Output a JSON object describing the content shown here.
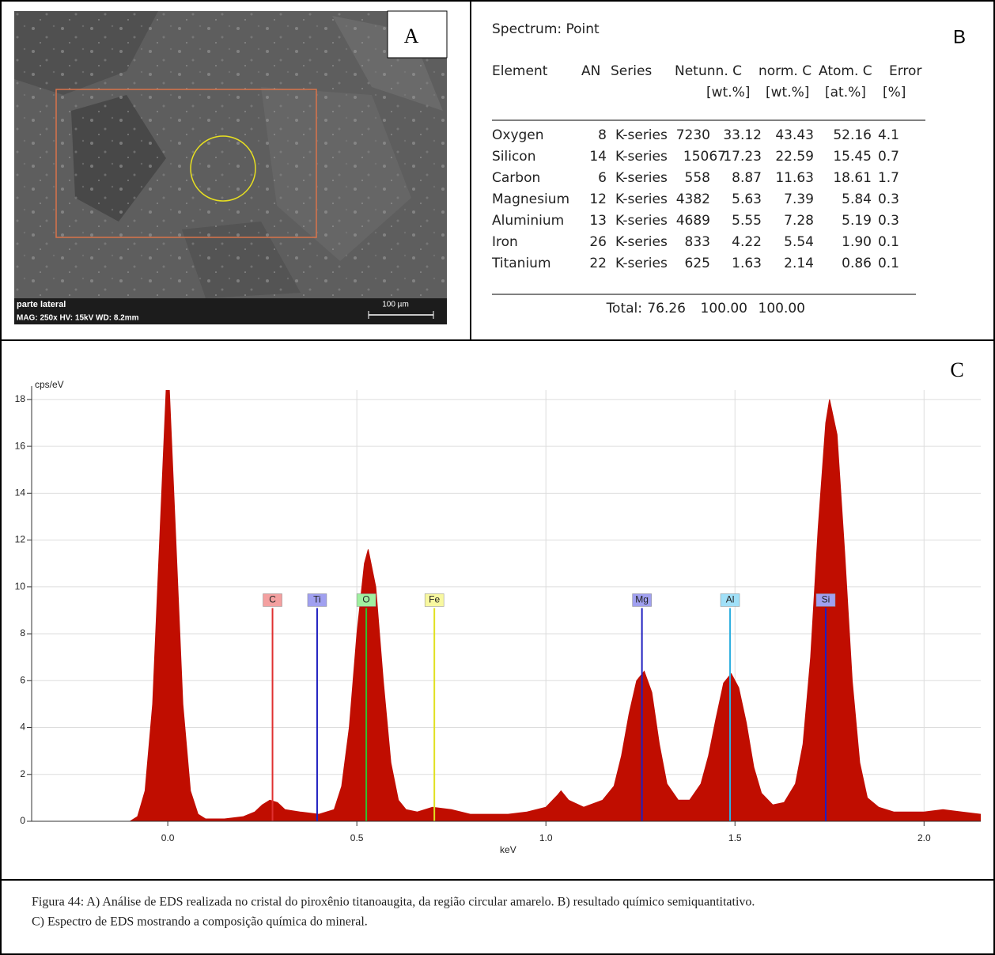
{
  "panel_a": {
    "label": "A",
    "caption_line_1": "parte lateral",
    "caption_line_2": "MAG: 250x  HV: 15kV  WD: 8.2mm",
    "scale_bar": "100 µm"
  },
  "panel_b": {
    "label": "B",
    "title": "Spectrum: Point",
    "header_1": [
      "Element",
      "AN",
      "Series",
      "Net",
      "unn. C",
      "norm. C",
      "Atom. C",
      "Error"
    ],
    "header_2": [
      "[wt.%]",
      "[wt.%]",
      "[at.%]",
      "[%]"
    ],
    "rows": [
      [
        "Oxygen",
        "8",
        "K-series",
        "7230",
        "33.12",
        "43.43",
        "52.16",
        "4.1"
      ],
      [
        "Silicon",
        "14",
        "K-series",
        "15067",
        "17.23",
        "22.59",
        "15.45",
        "0.7"
      ],
      [
        "Carbon",
        "6",
        "K-series",
        "558",
        "8.87",
        "11.63",
        "18.61",
        "1.7"
      ],
      [
        "Magnesium",
        "12",
        "K-series",
        "4382",
        "5.63",
        "7.39",
        "5.84",
        "0.3"
      ],
      [
        "Aluminium",
        "13",
        "K-series",
        "4689",
        "5.55",
        "7.28",
        "5.19",
        "0.3"
      ],
      [
        "Iron",
        "26",
        "K-series",
        "833",
        "4.22",
        "5.54",
        "1.90",
        "0.1"
      ],
      [
        "Titanium",
        "22",
        "K-series",
        "625",
        "1.63",
        "2.14",
        "0.86",
        "0.1"
      ]
    ],
    "total": [
      "Total:",
      "76.26",
      "100.00",
      "100.00"
    ]
  },
  "chart_data": {
    "type": "area",
    "panel_label": "C",
    "ylabel": "cps/eV",
    "xlabel": "keV",
    "color": "#c00d00",
    "x": [
      -0.36,
      -0.1,
      -0.08,
      -0.06,
      -0.04,
      -0.02,
      0.0,
      0.02,
      0.04,
      0.06,
      0.08,
      0.1,
      0.15,
      0.2,
      0.23,
      0.25,
      0.27,
      0.29,
      0.31,
      0.35,
      0.4,
      0.44,
      0.46,
      0.48,
      0.5,
      0.52,
      0.53,
      0.55,
      0.57,
      0.59,
      0.61,
      0.63,
      0.66,
      0.7,
      0.75,
      0.8,
      0.85,
      0.9,
      0.95,
      1.0,
      1.03,
      1.04,
      1.06,
      1.1,
      1.15,
      1.18,
      1.2,
      1.22,
      1.24,
      1.26,
      1.28,
      1.3,
      1.32,
      1.35,
      1.38,
      1.41,
      1.43,
      1.45,
      1.47,
      1.49,
      1.51,
      1.53,
      1.55,
      1.57,
      1.6,
      1.63,
      1.66,
      1.68,
      1.7,
      1.72,
      1.74,
      1.75,
      1.77,
      1.79,
      1.81,
      1.83,
      1.85,
      1.88,
      1.92,
      2.0,
      2.05,
      2.1,
      2.15
    ],
    "values": [
      0,
      0,
      0.2,
      1.3,
      5.0,
      12.5,
      20,
      12.5,
      5.0,
      1.3,
      0.3,
      0.1,
      0.1,
      0.2,
      0.4,
      0.7,
      0.9,
      0.8,
      0.5,
      0.4,
      0.3,
      0.5,
      1.5,
      4.0,
      8.0,
      11.0,
      11.6,
      10.0,
      6.0,
      2.5,
      0.9,
      0.5,
      0.4,
      0.6,
      0.5,
      0.3,
      0.3,
      0.3,
      0.4,
      0.6,
      1.1,
      1.3,
      0.9,
      0.6,
      0.9,
      1.5,
      2.8,
      4.6,
      6.0,
      6.4,
      5.5,
      3.3,
      1.6,
      0.9,
      0.9,
      1.6,
      2.8,
      4.4,
      5.9,
      6.3,
      5.7,
      4.2,
      2.3,
      1.2,
      0.7,
      0.8,
      1.6,
      3.3,
      7.0,
      12.5,
      17.0,
      18.0,
      16.5,
      11.5,
      6.0,
      2.5,
      1.0,
      0.6,
      0.4,
      0.4,
      0.5,
      0.4,
      0.3
    ],
    "peaks": [
      {
        "label": "C",
        "x": 0.277,
        "height": 9.1,
        "color": "#e03030",
        "label_color": "#f4a0a0"
      },
      {
        "label": "Ti",
        "x": 0.395,
        "height": 9.1,
        "color": "#2020c0",
        "label_color": "#a0a0f0"
      },
      {
        "label": "O",
        "x": 0.525,
        "height": 9.1,
        "color": "#30c030",
        "label_color": "#a0f0a0"
      },
      {
        "label": "Fe",
        "x": 0.705,
        "height": 9.1,
        "color": "#e0e020",
        "label_color": "#f8f8a0"
      },
      {
        "label": "Mg",
        "x": 1.254,
        "height": 9.1,
        "color": "#2020c0",
        "label_color": "#a0a0f0"
      },
      {
        "label": "Al",
        "x": 1.487,
        "height": 9.1,
        "color": "#30b0e0",
        "label_color": "#a0e0f8"
      },
      {
        "label": "Si",
        "x": 1.74,
        "height": 9.1,
        "color": "#2020c0",
        "label_color": "#a0a0f0"
      }
    ],
    "xlim": [
      -0.36,
      2.15
    ],
    "ylim": [
      0,
      18.4
    ],
    "xticks": [
      {
        "value": 0,
        "label": "0.0"
      },
      0.5,
      {
        "value": 1,
        "label": "1.0"
      },
      1.5,
      {
        "value": 2,
        "label": "2.0"
      }
    ],
    "yticks": [
      0,
      2,
      4,
      6,
      8,
      10,
      12,
      14,
      16,
      18
    ],
    "grid": true
  },
  "caption": {
    "line_1": "Figura 44: A) Análise de EDS realizada no cristal do piroxênio titanoaugita, da região circular amarelo. B) resultado químico semiquantitativo.",
    "line_2": "C) Espectro de EDS mostrando a composição química do mineral."
  }
}
